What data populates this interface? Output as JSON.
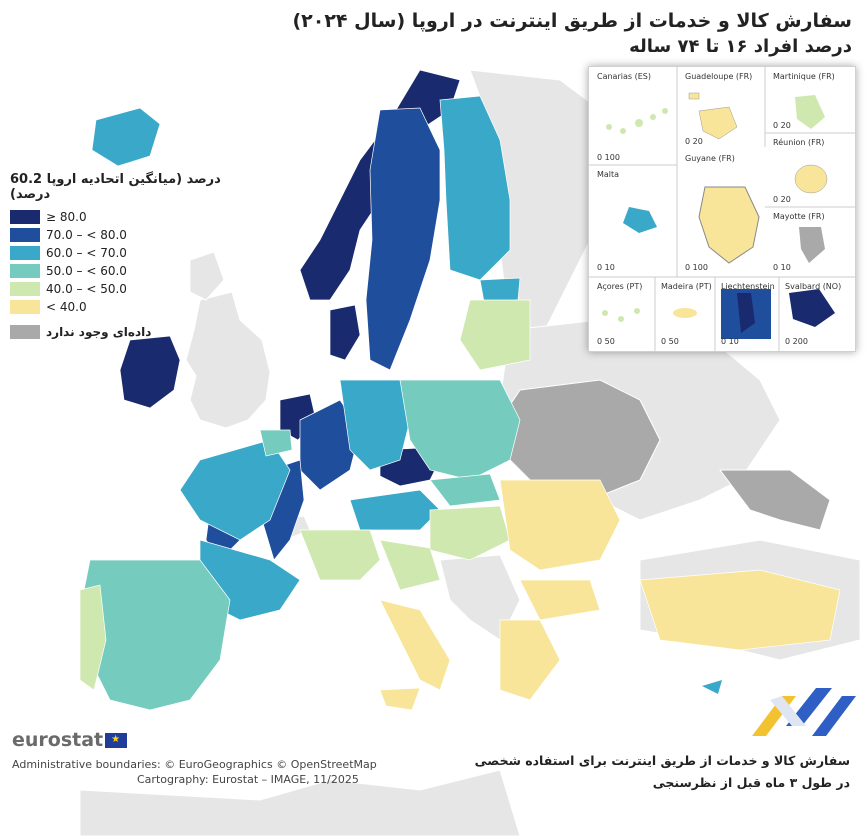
{
  "title": {
    "line1": "سفارش کالا و خدمات از طریق اینترنت در اروپا (سال ۲۰۲۴)",
    "line2": "درصد افراد ۱۶ تا ۷۴ ساله"
  },
  "legend": {
    "title": "درصد (میانگین اتحادیه اروپا 60.2 درصد)",
    "classes": [
      {
        "label": "≥ 80.0",
        "color": "#1a2a6e"
      },
      {
        "label": "70.0 – < 80.0",
        "color": "#1f4e9c"
      },
      {
        "label": "60.0 – < 70.0",
        "color": "#3aa8c8"
      },
      {
        "label": "50.0 – < 60.0",
        "color": "#74cbbe"
      },
      {
        "label": "40.0 – < 50.0",
        "color": "#cfe8b0"
      },
      {
        "label": "< 40.0",
        "color": "#f8e59a"
      }
    ],
    "no_data": {
      "label": "داده‌ای وجود ندارد",
      "color": "#a9a9a9"
    },
    "non_eu_color": "#e6e6e6",
    "sea_color": "#ffffff"
  },
  "insets": [
    {
      "name": "Canarias (ES)",
      "scale": "0   100"
    },
    {
      "name": "Guadeloupe (FR)",
      "scale": "0   20"
    },
    {
      "name": "Martinique (FR)",
      "scale": "0   20"
    },
    {
      "name": "Réunion (FR)",
      "scale": "0   20"
    },
    {
      "name": "Malta",
      "scale": "0   10"
    },
    {
      "name": "Guyane (FR)",
      "scale": "0   100"
    },
    {
      "name": "Mayotte (FR)",
      "scale": "0   10"
    },
    {
      "name": "Açores (PT)",
      "scale": "0   50"
    },
    {
      "name": "Madeira (PT)",
      "scale": "0   50"
    },
    {
      "name": "Liechtenstein",
      "scale": "0   10"
    },
    {
      "name": "Svalbard (NO)",
      "scale": "0   200"
    }
  ],
  "brand": "eurostat",
  "credits": {
    "line1": "Administrative boundaries: © EuroGeographics © OpenStreetMap",
    "line2": "Cartography: Eurostat – IMAGE, 11/2025"
  },
  "footnote": {
    "line1": "سفارش کالا و خدمات از طریق اینترنت برای استفاده شخصی",
    "line2": "در طول ۳ ماه قبل از نظرسنجی"
  }
}
